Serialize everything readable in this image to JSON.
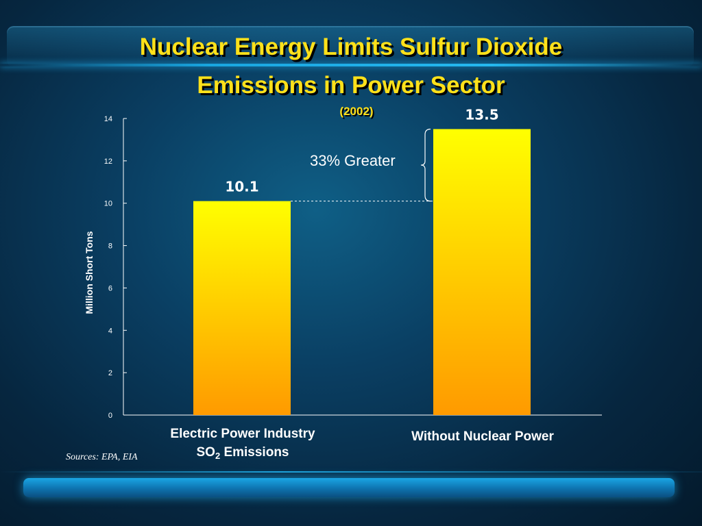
{
  "slide": {
    "title_line1": "Nuclear Energy Limits Sulfur Dioxide",
    "title_line2": "Emissions in Power Sector",
    "subtitle": "(2002)",
    "sources": "Sources: EPA, EIA",
    "annotation": "33% Greater"
  },
  "colors": {
    "title": "#ffe11a",
    "bar_top": "#ffff00",
    "bar_bottom": "#ff9a00",
    "axis": "#ffffff"
  },
  "chart_data": {
    "type": "bar",
    "title": "Nuclear Energy Limits Sulfur Dioxide Emissions in Power Sector (2002)",
    "xlabel": "",
    "ylabel": "Million Short Tons",
    "ylim": [
      0,
      14
    ],
    "yticks": [
      0,
      2,
      4,
      6,
      8,
      10,
      12,
      14
    ],
    "categories": [
      {
        "line1": "Electric Power Industry",
        "line2_main": "SO",
        "line2_sub": "2",
        "line2_rest": " Emissions"
      },
      {
        "line1": "Without Nuclear Power"
      }
    ],
    "values": [
      10.1,
      13.5
    ],
    "value_labels": [
      "10.1",
      "13.5"
    ],
    "annotations": [
      {
        "text": "33% Greater",
        "from": 10.1,
        "to": 13.5
      }
    ]
  }
}
